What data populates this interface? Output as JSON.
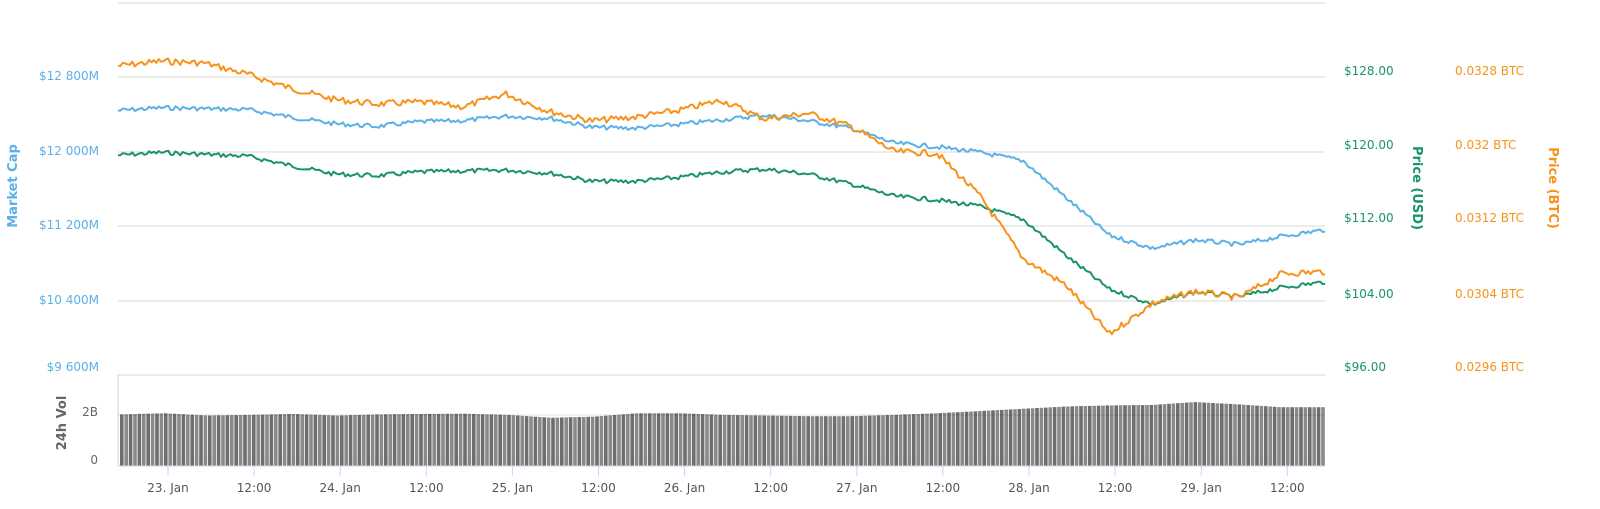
{
  "chart_data": {
    "type": "line",
    "title": "",
    "x_ticks": [
      "23. Jan",
      "12:00",
      "24. Jan",
      "12:00",
      "25. Jan",
      "12:00",
      "26. Jan",
      "12:00",
      "27. Jan",
      "12:00",
      "28. Jan",
      "12:00",
      "29. Jan",
      "12:00"
    ],
    "axes": {
      "market_cap": {
        "title": "Market Cap",
        "ticks": [
          "$12 800M",
          "$12 000M",
          "$11 200M",
          "$10 400M",
          "$9 600M"
        ],
        "range": [
          9600,
          13600
        ],
        "color": "#5bb1e6"
      },
      "price_usd": {
        "title": "Price (USD)",
        "ticks": [
          "$128.00",
          "$120.00",
          "$112.00",
          "$104.00",
          "$96.00"
        ],
        "range": [
          96,
          136
        ],
        "color": "#1a9468"
      },
      "price_btc": {
        "title": "Price (BTC)",
        "ticks": [
          "0.0328 BTC",
          "0.032 BTC",
          "0.0312 BTC",
          "0.0304 BTC",
          "0.0296 BTC"
        ],
        "range": [
          0.0296,
          0.0336
        ],
        "color": "#f7931a"
      },
      "volume": {
        "title": "24h Vol",
        "ticks": [
          "2B",
          "0"
        ]
      }
    },
    "x": [
      "22 Jan 18:00",
      "23 Jan 00:00",
      "23 Jan 06:00",
      "23 Jan 12:00",
      "23 Jan 18:00",
      "24 Jan 00:00",
      "24 Jan 06:00",
      "24 Jan 12:00",
      "24 Jan 18:00",
      "25 Jan 00:00",
      "25 Jan 06:00",
      "25 Jan 12:00",
      "25 Jan 18:00",
      "26 Jan 00:00",
      "26 Jan 06:00",
      "26 Jan 12:00",
      "26 Jan 18:00",
      "27 Jan 00:00",
      "27 Jan 06:00",
      "27 Jan 12:00",
      "27 Jan 18:00",
      "28 Jan 00:00",
      "28 Jan 06:00",
      "28 Jan 12:00",
      "28 Jan 18:00",
      "29 Jan 00:00",
      "29 Jan 06:00",
      "29 Jan 12:00",
      "29 Jan 18:00"
    ],
    "series": [
      {
        "name": "Market Cap",
        "axis": "market_cap",
        "color": "#5bb1e6",
        "values": [
          12440,
          12470,
          12460,
          12450,
          12370,
          12300,
          12270,
          12320,
          12330,
          12380,
          12360,
          12260,
          12250,
          12290,
          12340,
          12390,
          12330,
          12250,
          12090,
          12050,
          11990,
          11900,
          11500,
          11100,
          10960,
          11050,
          11000,
          11090,
          11160
        ]
      },
      {
        "name": "Price (USD)",
        "axis": "price_usd",
        "color": "#1a9468",
        "values": [
          119.6,
          119.9,
          119.7,
          119.5,
          118.5,
          117.6,
          117.4,
          117.8,
          117.9,
          118.0,
          117.7,
          116.8,
          116.8,
          117.2,
          117.8,
          118.1,
          117.6,
          116.5,
          115.2,
          114.8,
          114.1,
          112.7,
          108.8,
          105.2,
          103.6,
          104.9,
          104.4,
          105.4,
          106.0
        ]
      },
      {
        "name": "Price (BTC)",
        "axis": "price_btc",
        "color": "#f7931a",
        "values": [
          0.03292,
          0.03297,
          0.03295,
          0.03283,
          0.03268,
          0.03256,
          0.03251,
          0.03253,
          0.03248,
          0.03262,
          0.03243,
          0.03233,
          0.03237,
          0.03244,
          0.03255,
          0.03235,
          0.03241,
          0.03227,
          0.032,
          0.03198,
          0.03152,
          0.03085,
          0.03056,
          0.03004,
          0.03037,
          0.0305,
          0.03043,
          0.03069,
          0.03071
        ]
      },
      {
        "name": "24h Vol",
        "axis": "volume",
        "color": "#7a7a7a",
        "values": [
          2.3,
          2.35,
          2.25,
          2.28,
          2.32,
          2.25,
          2.3,
          2.32,
          2.33,
          2.28,
          2.15,
          2.2,
          2.35,
          2.35,
          2.28,
          2.25,
          2.22,
          2.22,
          2.28,
          2.35,
          2.45,
          2.55,
          2.65,
          2.7,
          2.72,
          2.85,
          2.75,
          2.62,
          2.62
        ]
      }
    ],
    "grid": true,
    "legend": "none"
  }
}
